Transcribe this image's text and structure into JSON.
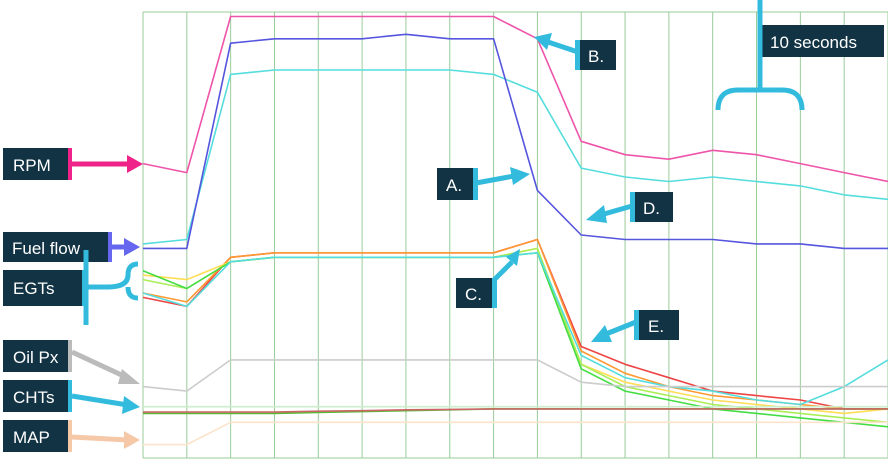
{
  "chart_data": {
    "type": "line",
    "title": "",
    "xlabel": "",
    "ylabel": "",
    "grid": true,
    "x": [
      0,
      1,
      2,
      3,
      4,
      5,
      6,
      7,
      8,
      9,
      10,
      11,
      12,
      13,
      14,
      15,
      16,
      17
    ],
    "series": [
      {
        "name": "RPM",
        "color": "#ee55aa",
        "values": [
          66,
          64,
          99,
          99,
          99,
          99,
          99,
          99,
          99,
          94,
          71,
          68,
          67,
          69,
          68,
          66,
          64,
          62
        ]
      },
      {
        "name": "",
        "color": "#55dddd",
        "values": [
          48,
          49,
          86,
          87,
          87,
          87,
          87,
          87,
          86,
          82,
          65,
          63,
          62,
          63,
          62,
          61,
          59,
          58
        ]
      },
      {
        "name": "Fuel flow",
        "color": "#5555dd",
        "values": [
          47,
          47,
          93,
          94,
          94,
          94,
          95,
          94,
          94,
          60,
          50,
          49,
          49,
          49,
          48,
          48,
          47,
          47
        ]
      },
      {
        "name": "EGTs",
        "color": "#ee4444",
        "values": [
          36,
          34,
          45,
          46,
          46,
          46,
          46,
          46,
          46,
          49,
          25,
          21,
          18,
          15,
          14,
          13,
          11,
          11
        ]
      },
      {
        "name": "",
        "color": "#ff9933",
        "values": [
          37,
          35,
          45,
          46,
          46,
          46,
          46,
          46,
          46,
          49,
          24,
          19,
          16,
          14,
          13,
          12,
          11,
          11
        ]
      },
      {
        "name": "",
        "color": "#ffdd55",
        "values": [
          41,
          40,
          44,
          45,
          45,
          45,
          45,
          45,
          45,
          47,
          21,
          17,
          15,
          13,
          12,
          11,
          10,
          11
        ]
      },
      {
        "name": "",
        "color": "#aaee55",
        "values": [
          40,
          38,
          44,
          45,
          45,
          45,
          45,
          45,
          45,
          47,
          21,
          16,
          14,
          12,
          11,
          10,
          9,
          8
        ]
      },
      {
        "name": "",
        "color": "#44dd44",
        "values": [
          42,
          38,
          44,
          45,
          45,
          45,
          45,
          45,
          45,
          46,
          20,
          15,
          13,
          11,
          10,
          9,
          8,
          7
        ]
      },
      {
        "name": "",
        "color": "#55dddd",
        "values": [
          37,
          34,
          44,
          45,
          45,
          45,
          45,
          45,
          45,
          46,
          23,
          18,
          16,
          15,
          13,
          12,
          16,
          22
        ]
      },
      {
        "name": "Oil Px",
        "color": "#cccccc",
        "values": [
          16,
          15,
          22,
          22,
          22,
          22,
          22,
          22,
          22,
          22,
          17,
          16,
          16,
          16,
          16,
          16,
          16,
          16
        ]
      },
      {
        "name": "CHTs",
        "color": "#55bb33",
        "values": [
          10,
          10,
          10,
          10,
          10.2,
          10.4,
          10.6,
          10.8,
          11,
          11,
          11,
          11,
          11,
          11,
          11,
          11,
          11,
          11
        ]
      },
      {
        "name": "",
        "color": "#cc6666",
        "values": [
          10.3,
          10.3,
          10.3,
          10.3,
          10.5,
          10.6,
          10.8,
          10.9,
          11,
          11,
          11,
          11,
          11,
          11,
          11,
          11,
          11,
          11
        ]
      },
      {
        "name": "",
        "color": "#cceecc",
        "values": [
          11.5,
          11.5,
          11.5,
          11.5,
          11.5,
          11.5,
          11.5,
          11.5,
          11.5,
          11.5,
          11.5,
          11.5,
          11.5,
          11.5,
          11.5,
          11.5,
          11.5,
          11.5
        ]
      },
      {
        "name": "MAP",
        "color": "#fde3cc",
        "values": [
          3,
          3,
          8,
          8,
          8,
          8,
          8,
          8,
          8,
          8,
          8,
          8,
          8,
          8,
          8,
          8,
          8,
          8
        ]
      }
    ],
    "labels": {
      "rpm": {
        "text": "RPM",
        "color": "#ee2288"
      },
      "fuel": {
        "text": "Fuel flow",
        "color": "#6666ee"
      },
      "egts": {
        "text": "EGTs",
        "color": "#33bbdd"
      },
      "oil": {
        "text": "Oil Px",
        "color": "#bbbbbb"
      },
      "chts": {
        "text": "CHTs",
        "color": "#33bbdd"
      },
      "map": {
        "text": "MAP",
        "color": "#f5c8a8"
      }
    },
    "annotations": {
      "a": {
        "text": "A."
      },
      "b": {
        "text": "B."
      },
      "c": {
        "text": "C."
      },
      "d": {
        "text": "D."
      },
      "e": {
        "text": "E."
      },
      "duration": {
        "text": "10 seconds"
      }
    }
  },
  "colors": {
    "label_bg": "#113344",
    "callout": "#33bbdd",
    "grid": "#99cc99"
  }
}
